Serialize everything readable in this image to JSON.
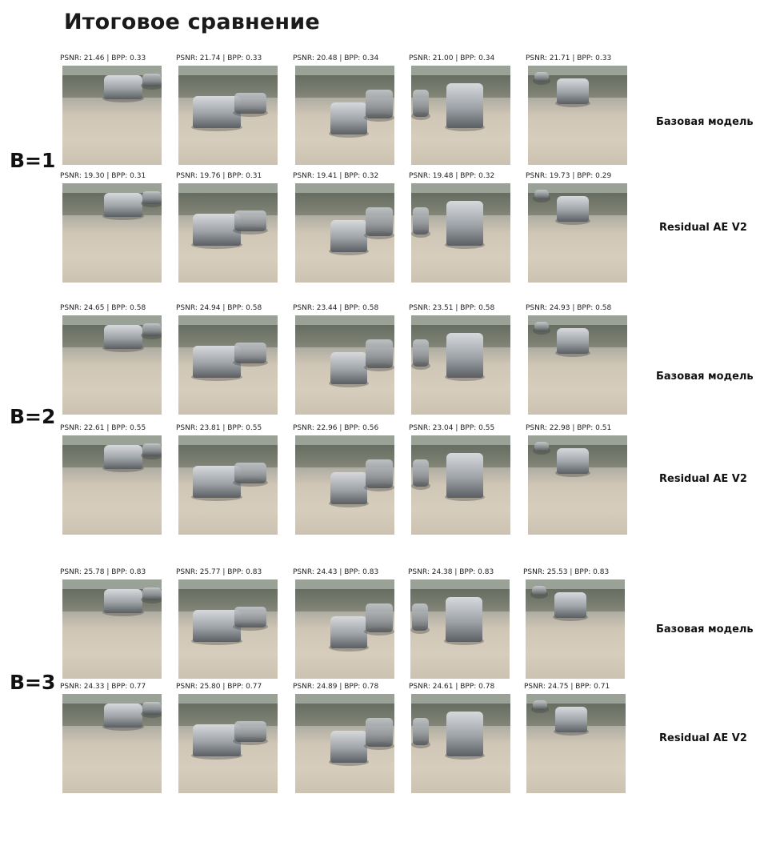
{
  "title": "Итоговое сравнение",
  "blocks": [
    {
      "label": "B=1",
      "rows": [
        {
          "model": "Базовая модель",
          "captions": [
            "PSNR: 21.46 | BPP: 0.33",
            "PSNR: 21.74 | BPP: 0.33",
            "PSNR: 20.48 | BPP: 0.34",
            "PSNR: 21.00 | BPP: 0.34",
            "PSNR: 21.71 | BPP: 0.33"
          ]
        },
        {
          "model": "Residual AE V2",
          "captions": [
            "PSNR: 19.30 | BPP: 0.31",
            "PSNR: 19.76 | BPP: 0.31",
            "PSNR: 19.41 | BPP: 0.32",
            "PSNR: 19.48 | BPP: 0.32",
            "PSNR: 19.73 | BPP: 0.29"
          ]
        }
      ]
    },
    {
      "label": "B=2",
      "rows": [
        {
          "model": "Базовая модель",
          "captions": [
            "PSNR: 24.65 | BPP: 0.58",
            "PSNR: 24.94 | BPP: 0.58",
            "PSNR: 23.44 | BPP: 0.58",
            "PSNR: 23.51 | BPP: 0.58",
            "PSNR: 24.93 | BPP: 0.58"
          ]
        },
        {
          "model": "Residual AE V2",
          "captions": [
            "PSNR: 22.61 | BPP: 0.55",
            "PSNR: 23.81 | BPP: 0.55",
            "PSNR: 22.96 | BPP: 0.56",
            "PSNR: 23.04 | BPP: 0.55",
            "PSNR: 22.98 | BPP: 0.51"
          ]
        }
      ]
    },
    {
      "label": "B=3",
      "rows": [
        {
          "model": "Базовая модель",
          "captions": [
            "PSNR: 25.78 | BPP: 0.83",
            "PSNR: 25.77 | BPP: 0.83",
            "PSNR: 24.43 | BPP: 0.83",
            "PSNR: 24.38 | BPP: 0.83",
            "PSNR: 25.53 | BPP: 0.83"
          ]
        },
        {
          "model": "Residual AE V2",
          "captions": [
            "PSNR: 24.33 | BPP: 0.77",
            "PSNR: 25.80 | BPP: 0.77",
            "PSNR: 24.89 | BPP: 0.78",
            "PSNR: 24.61 | BPP: 0.78",
            "PSNR: 24.75 | BPP: 0.71"
          ]
        }
      ]
    }
  ]
}
